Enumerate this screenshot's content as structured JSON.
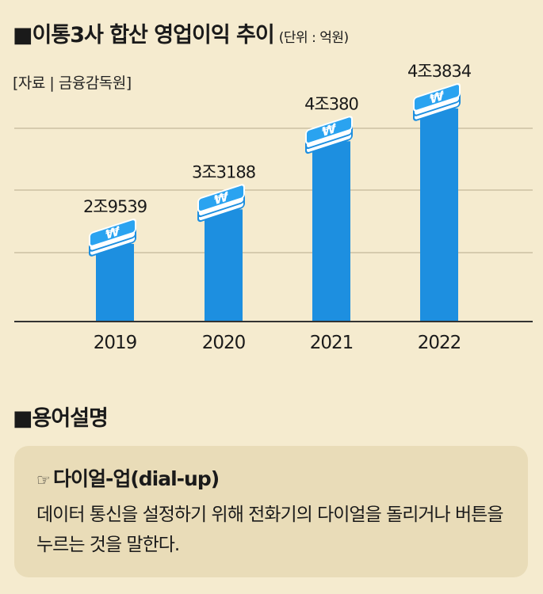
{
  "header": {
    "marker": "■",
    "title": "이통3사 합산 영업이익 추이",
    "unit": "(단위 : 억원)",
    "source": "[자료 | 금융감독원]"
  },
  "colors": {
    "background": "#f5ebcf",
    "bar": "#1d8fe0",
    "bar_top": "#2aa3f0",
    "note_box": "#e9dcb8"
  },
  "chart_data": {
    "type": "bar",
    "categories": [
      "2019",
      "2020",
      "2021",
      "2022"
    ],
    "values": [
      29539,
      33188,
      40380,
      43834
    ],
    "data_labels": [
      "2조9539",
      "3조3188",
      "4조380",
      "4조3834"
    ],
    "grid": true,
    "icon": "money-stack-icon"
  },
  "glossary": {
    "marker": "■",
    "heading": "용어설명",
    "term_icon": "☞",
    "term": "다이얼-업(dial-up)",
    "description": "데이터 통신을 설정하기 위해 전화기의 다이얼을 돌리거나 버튼을 누르는 것을 말한다."
  }
}
